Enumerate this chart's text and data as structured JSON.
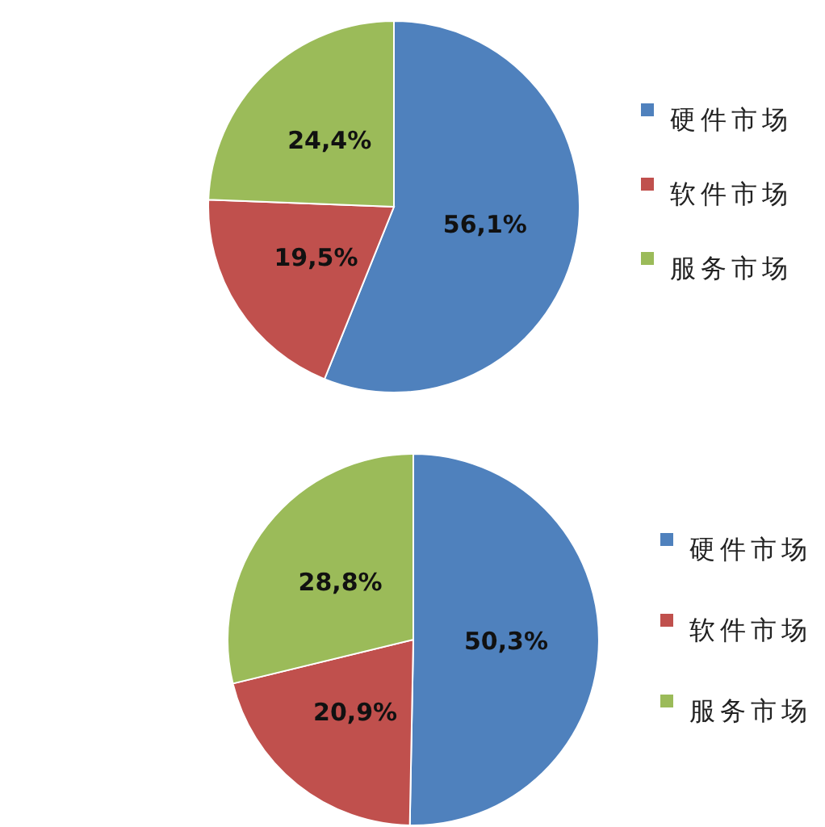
{
  "chart_data": [
    {
      "type": "pie",
      "categories": [
        "硬件市场",
        "软件市场",
        "服务市场"
      ],
      "values": [
        56.1,
        19.5,
        24.4
      ],
      "colors": [
        "#4f81bd",
        "#c0504d",
        "#9bbb59"
      ],
      "value_labels": [
        "56,1%",
        "19,5%",
        "24,4%"
      ],
      "legend": "right"
    },
    {
      "type": "pie",
      "categories": [
        "硬件市场",
        "软件市场",
        "服务市场"
      ],
      "values": [
        50.3,
        20.9,
        28.8
      ],
      "colors": [
        "#4f81bd",
        "#c0504d",
        "#9bbb59"
      ],
      "value_labels": [
        "50,3%",
        "20,9%",
        "28,8%"
      ],
      "legend": "right"
    }
  ]
}
